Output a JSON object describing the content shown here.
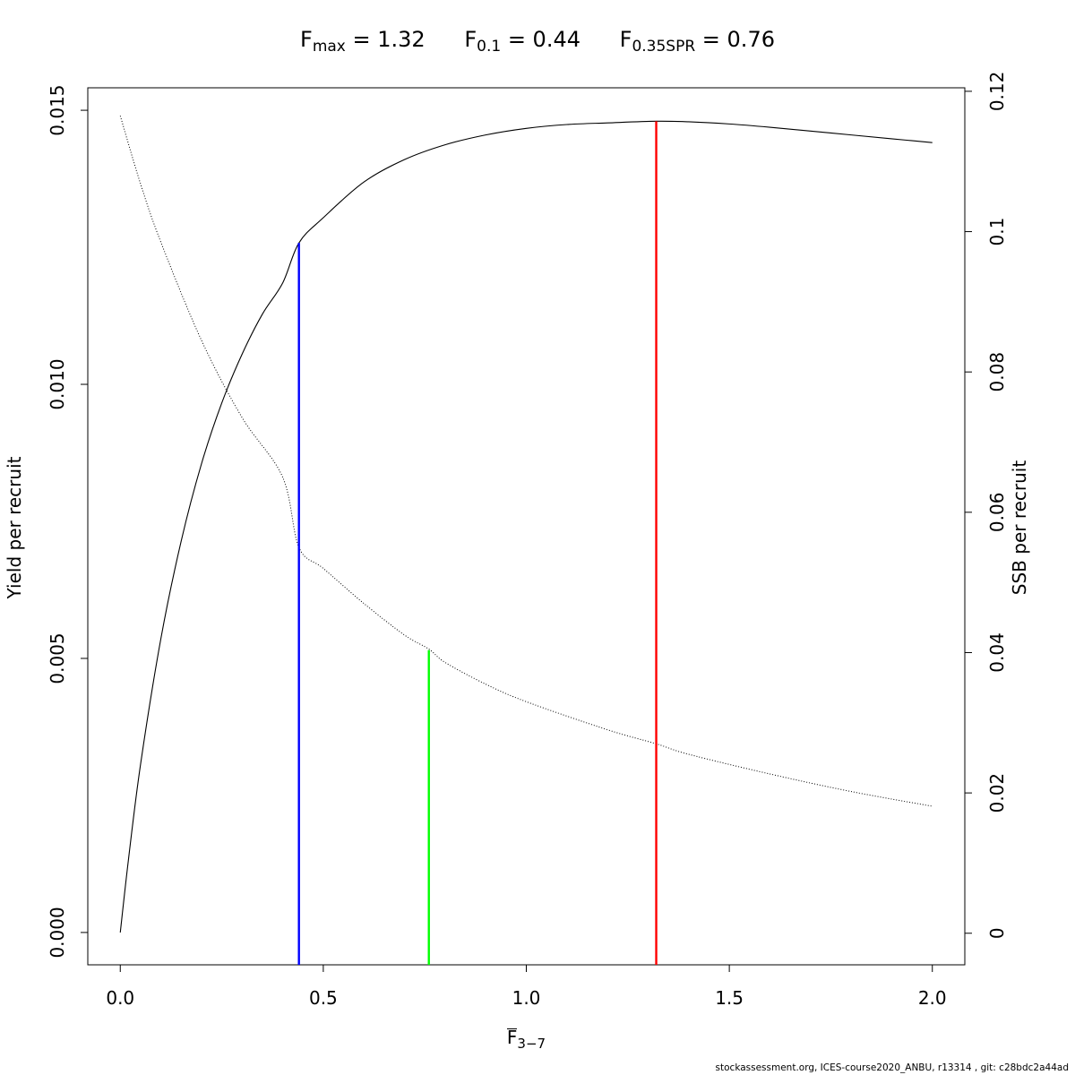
{
  "title": {
    "refs": [
      {
        "symbol": "F",
        "sub": "max",
        "rest": " = 1.32"
      },
      {
        "symbol": "F",
        "sub": "0.1",
        "rest": " = 0.44"
      },
      {
        "symbol": "F",
        "sub": "0.35SPR",
        "rest": " = 0.76"
      }
    ]
  },
  "footer": "stockassessment.org, ICES-course2020_ANBU, r13314 , git: c28bdc2a44ad",
  "chart_data": {
    "type": "line",
    "xlabel": {
      "symbol": "F",
      "sub": "3−7"
    },
    "ylabel": "Yield per recruit",
    "y2label": "SSB per recruit",
    "xlim": [
      -0.08,
      2.08
    ],
    "ylim": [
      -0.00059,
      0.01541
    ],
    "y2lim": [
      -0.0045,
      0.1205
    ],
    "x_ticks": [
      "0.0",
      "0.5",
      "1.0",
      "1.5",
      "2.0"
    ],
    "y_ticks": [
      "0.000",
      "0.005",
      "0.010",
      "0.015"
    ],
    "y2_ticks": [
      "0",
      "0.02",
      "0.04",
      "0.06",
      "0.08",
      "0.1",
      "0.12"
    ],
    "grid": false,
    "series": [
      {
        "axis": "left",
        "style": "solid",
        "color": "#000000",
        "x": [
          0,
          0.02,
          0.05,
          0.1,
          0.15,
          0.2,
          0.25,
          0.3,
          0.35,
          0.4,
          0.44,
          0.5,
          0.6,
          0.7,
          0.8,
          0.9,
          1.0,
          1.1,
          1.2,
          1.32,
          1.4,
          1.5,
          1.6,
          1.7,
          1.8,
          1.9,
          2.0
        ],
        "y": [
          0.0,
          0.00132,
          0.00307,
          0.00536,
          0.00714,
          0.00855,
          0.00966,
          0.01055,
          0.01128,
          0.01185,
          0.01258,
          0.01304,
          0.01369,
          0.0141,
          0.01437,
          0.01455,
          0.01467,
          0.01474,
          0.01477,
          0.0148,
          0.01479,
          0.01475,
          0.01469,
          0.01462,
          0.01455,
          0.01448,
          0.01441
        ]
      },
      {
        "axis": "right",
        "style": "dotted",
        "color": "#000000",
        "x": [
          0,
          0.05,
          0.1,
          0.2,
          0.3,
          0.4,
          0.44,
          0.5,
          0.6,
          0.7,
          0.76,
          0.8,
          0.9,
          1.0,
          1.2,
          1.32,
          1.4,
          1.6,
          1.8,
          2.0
        ],
        "y": [
          0.1165,
          0.1068,
          0.0985,
          0.0845,
          0.0735,
          0.065,
          0.055,
          0.052,
          0.047,
          0.0425,
          0.0405,
          0.0386,
          0.0355,
          0.033,
          0.029,
          0.027,
          0.0255,
          0.0227,
          0.0202,
          0.0181
        ]
      }
    ],
    "reference_lines": [
      {
        "x": 0.44,
        "y_top": 0.01258,
        "color": "#0000ff"
      },
      {
        "x": 0.76,
        "y_top": 0.00515,
        "color": "#00ff00"
      },
      {
        "x": 1.32,
        "y_top": 0.0148,
        "color": "#ff0000"
      }
    ]
  }
}
